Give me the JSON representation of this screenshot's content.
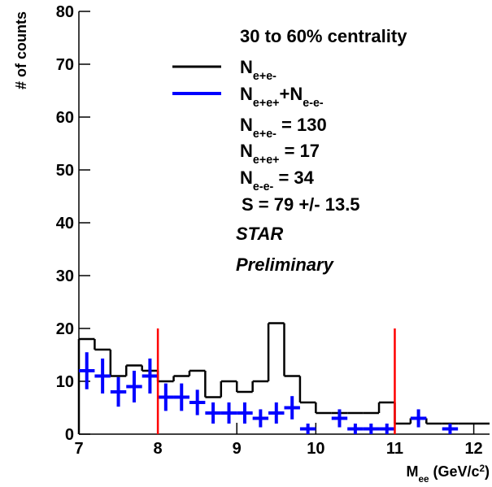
{
  "chart_data": {
    "type": "histogram",
    "ylabel": "# of counts",
    "xlabel": [
      {
        "text": "M"
      },
      {
        "text": "ee",
        "sub": true
      },
      {
        "text": " (GeV/c"
      },
      {
        "text": "2",
        "sup": true
      },
      {
        "text": ")"
      }
    ],
    "xlim": [
      7,
      12.2
    ],
    "ylim": [
      0,
      80
    ],
    "xticks": [
      7,
      8,
      9,
      10,
      11,
      12
    ],
    "yticks": [
      0,
      10,
      20,
      30,
      40,
      50,
      60,
      70,
      80
    ],
    "bins": [
      7.0,
      7.2,
      7.4,
      7.6,
      7.8,
      8.0,
      8.2,
      8.4,
      8.6,
      8.8,
      9.0,
      9.2,
      9.4,
      9.6,
      9.8,
      10.0,
      10.2,
      10.4,
      10.6,
      10.8,
      11.0,
      11.2,
      11.4,
      11.6,
      11.8,
      12.0,
      12.2
    ],
    "series": [
      {
        "name": [
          {
            "text": "N"
          },
          {
            "text": "e+e-",
            "sub": true
          }
        ],
        "color": "#000000",
        "values": [
          18,
          16,
          11,
          13,
          12,
          10,
          11,
          12,
          7,
          10,
          8,
          10,
          21,
          11,
          6,
          4,
          4,
          4,
          4,
          6,
          2,
          3,
          2,
          2,
          2,
          2
        ]
      },
      {
        "name": [
          {
            "text": "N"
          },
          {
            "text": "e+e+",
            "sub": true
          },
          {
            "text": "+N"
          },
          {
            "text": "e-e-",
            "sub": true
          }
        ],
        "color": "#0000ff",
        "x": [
          7.1,
          7.3,
          7.5,
          7.7,
          7.9,
          8.1,
          8.3,
          8.5,
          8.7,
          8.9,
          9.1,
          9.3,
          9.5,
          9.7,
          9.9,
          10.3,
          10.5,
          10.7,
          10.9,
          11.3,
          11.7
        ],
        "values": [
          12,
          11,
          8,
          9,
          11,
          7,
          7,
          6,
          4,
          4,
          4,
          3,
          4,
          5,
          1,
          3,
          1,
          1,
          1,
          3,
          1
        ],
        "errors": [
          3.5,
          3.3,
          2.8,
          3,
          3.3,
          2.6,
          2.6,
          2.4,
          2,
          2,
          2,
          1.7,
          2,
          2.2,
          1,
          1.7,
          1,
          1,
          1,
          1.7,
          1
        ]
      }
    ],
    "vertical_lines": {
      "x": [
        8,
        11
      ],
      "ymax": 20,
      "color": "#ff0000"
    },
    "annotations": [
      [
        {
          "text": "30 to 60% centrality"
        }
      ],
      [
        {
          "text": "N"
        },
        {
          "text": "e+e-",
          "sub": true
        },
        {
          "text": " = 130"
        }
      ],
      [
        {
          "text": "N"
        },
        {
          "text": "e+e+",
          "sub": true
        },
        {
          "text": " = 17"
        }
      ],
      [
        {
          "text": "N"
        },
        {
          "text": "e-e-",
          "sub": true
        },
        {
          "text": " = 34"
        }
      ],
      [
        {
          "text": "S = 79 +/- 13.5"
        }
      ],
      [
        {
          "text": "STAR"
        }
      ],
      [
        {
          "text": "Preliminary"
        }
      ]
    ]
  }
}
